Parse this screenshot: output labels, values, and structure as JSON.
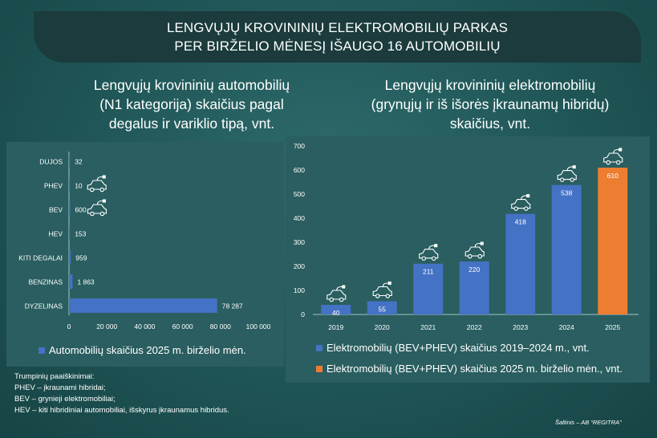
{
  "title": {
    "line1": "LENGVŲJŲ KROVININIŲ ELEKTROMOBILIŲ PARKAS",
    "line2": "PER BIRŽELIO MĖNESĮ IŠAUGO 16 AUTOMOBILIŲ"
  },
  "left_subtitle": [
    "Lengvųjų krovininių automobilių",
    "(N1 kategorija) skaičius pagal",
    "degalus ir variklio tipą, vnt."
  ],
  "right_subtitle": [
    "Lengvųjų krovininių elektromobilių",
    "(grynųjų ir iš išorės įkraunamų hibridų)",
    "skaičius, vnt."
  ],
  "notes": [
    "Trumpinių paaiškinimai:",
    "PHEV – įkraunami hibridai;",
    "BEV – grynieji elektromobiliai;",
    "HEV – kiti hibridiniai automobiliai, išskyrus įkraunamus hibridus."
  ],
  "source": "Šaltinis – AB “REGITRA”",
  "colors": {
    "bar_blue": "#4472c4",
    "bar_orange": "#ed7d31",
    "title_bg": "#1b3b3c",
    "panel_bg": "#2a5e60"
  },
  "chart_data": [
    {
      "type": "bar",
      "orientation": "horizontal",
      "categories": [
        "DUJOS",
        "PHEV",
        "BEV",
        "HEV",
        "KITI DEGALAI",
        "BENZINAS",
        "DYZELINAS"
      ],
      "values": [
        32,
        10,
        600,
        153,
        959,
        1863,
        78287
      ],
      "value_labels": [
        "32",
        "10",
        "600",
        "153",
        "959",
        "1 863",
        "78 287"
      ],
      "series": [
        {
          "name": "Automobilių skaičius 2025 m. birželio mėn.",
          "color": "#4472c4"
        }
      ],
      "xlim": [
        0,
        100000
      ],
      "xticks": [
        0,
        20000,
        40000,
        60000,
        80000,
        100000
      ],
      "xtick_labels": [
        "0",
        "20 000",
        "40 000",
        "60 000",
        "80 000",
        "100 000"
      ],
      "icons": {
        "PHEV": "ev-car-icon",
        "BEV": "ev-car-icon"
      },
      "legend": "bottom",
      "grid": false
    },
    {
      "type": "bar",
      "categories": [
        "2019",
        "2020",
        "2021",
        "2022",
        "2023",
        "2024",
        "2025"
      ],
      "values": [
        40,
        55,
        211,
        220,
        418,
        538,
        610
      ],
      "colors": [
        "#4472c4",
        "#4472c4",
        "#4472c4",
        "#4472c4",
        "#4472c4",
        "#4472c4",
        "#ed7d31"
      ],
      "series": [
        {
          "name": "Elektromobilių (BEV+PHEV) skaičius 2019–2024 m., vnt.",
          "color": "#4472c4"
        },
        {
          "name": "Elektromobilių (BEV+PHEV) skaičius 2025 m. birželio mėn., vnt.",
          "color": "#ed7d31"
        }
      ],
      "ylim": [
        0,
        700
      ],
      "yticks": [
        0,
        100,
        200,
        300,
        400,
        500,
        600,
        700
      ],
      "icon": "ev-car-icon",
      "legend": "bottom",
      "grid": false
    }
  ]
}
